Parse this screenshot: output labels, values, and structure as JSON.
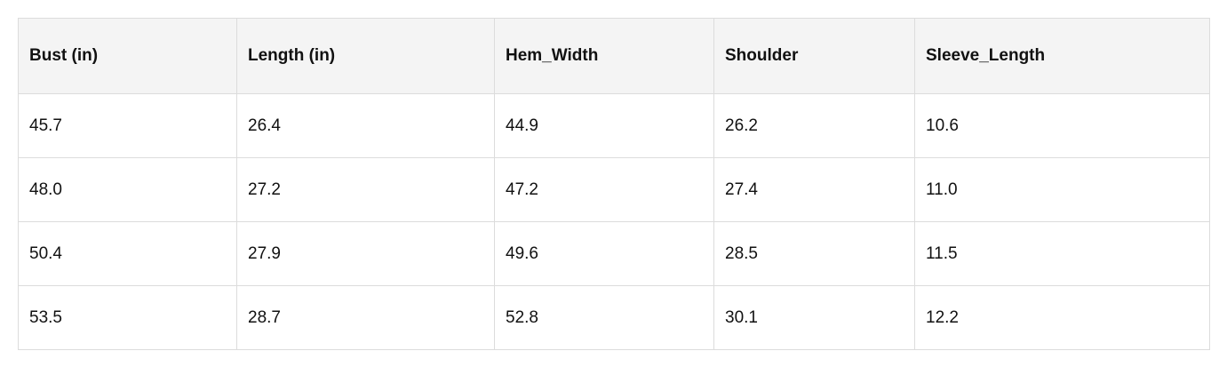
{
  "table": {
    "header": [
      "Bust (in)",
      "Length (in)",
      "Hem_Width",
      "Shoulder",
      "Sleeve_Length"
    ],
    "rows": [
      [
        "45.7",
        "26.4",
        "44.9",
        "26.2",
        "10.6"
      ],
      [
        "48.0",
        "27.2",
        "47.2",
        "27.4",
        "11.0"
      ],
      [
        "50.4",
        "27.9",
        "49.6",
        "28.5",
        "11.5"
      ],
      [
        "53.5",
        "28.7",
        "52.8",
        "30.1",
        "12.2"
      ]
    ]
  }
}
